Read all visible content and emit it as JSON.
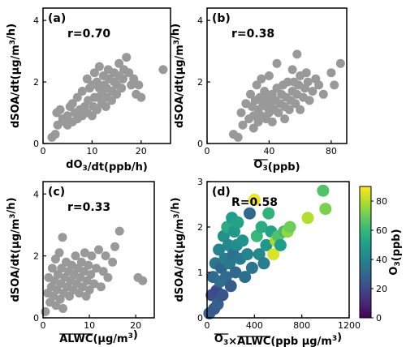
{
  "chart_data": [
    {
      "type": "scatter",
      "panel": "(a)",
      "annotation": "r=0.70",
      "xlabel": "dO3/dt(ppb/h)",
      "ylabel": "dSOA/dt(μg/m3/h)",
      "xlim": [
        0,
        26
      ],
      "ylim": [
        0,
        4.4
      ],
      "xticks": [
        0,
        10,
        20
      ],
      "yticks": [
        0,
        2,
        4
      ],
      "marker_color": "#999999",
      "points": [
        [
          1.8,
          0.2
        ],
        [
          2.5,
          0.3
        ],
        [
          3,
          0.6
        ],
        [
          2.8,
          1.0
        ],
        [
          3.5,
          1.1
        ],
        [
          4,
          0.8
        ],
        [
          4.5,
          0.7
        ],
        [
          5,
          0.9
        ],
        [
          5.5,
          1.2
        ],
        [
          5,
          0.6
        ],
        [
          6,
          0.7
        ],
        [
          6.5,
          1.0
        ],
        [
          6,
          1.3
        ],
        [
          7,
          0.8
        ],
        [
          7.5,
          1.1
        ],
        [
          7,
          1.5
        ],
        [
          8,
          0.9
        ],
        [
          8.5,
          1.2
        ],
        [
          8,
          1.7
        ],
        [
          9,
          1.0
        ],
        [
          9.2,
          1.4
        ],
        [
          9.5,
          1.8
        ],
        [
          9,
          2.1
        ],
        [
          10,
          0.9
        ],
        [
          10.3,
          1.2
        ],
        [
          10.5,
          1.5
        ],
        [
          10,
          1.9
        ],
        [
          10.5,
          2.3
        ],
        [
          11,
          1.1
        ],
        [
          11.2,
          1.5
        ],
        [
          11.5,
          1.8
        ],
        [
          11,
          2.0
        ],
        [
          11.5,
          2.5
        ],
        [
          12,
          1.3
        ],
        [
          12,
          1.6
        ],
        [
          12.5,
          1.9
        ],
        [
          12.3,
          2.2
        ],
        [
          12.8,
          1.2
        ],
        [
          13,
          1.5
        ],
        [
          13,
          1.8
        ],
        [
          13.5,
          2.1
        ],
        [
          13.3,
          2.4
        ],
        [
          14,
          1.4
        ],
        [
          14,
          1.7
        ],
        [
          14.5,
          2.0
        ],
        [
          14.5,
          2.3
        ],
        [
          15,
          1.6
        ],
        [
          15,
          1.9
        ],
        [
          15.5,
          2.2
        ],
        [
          15.5,
          2.6
        ],
        [
          16,
          1.8
        ],
        [
          16.3,
          2.1
        ],
        [
          16.5,
          2.4
        ],
        [
          17,
          2.8
        ],
        [
          17.5,
          2.3
        ],
        [
          18,
          1.9
        ],
        [
          18.5,
          2.1
        ],
        [
          19,
          1.6
        ],
        [
          19.5,
          1.9
        ],
        [
          20,
          1.5
        ],
        [
          24.5,
          2.4
        ]
      ]
    },
    {
      "type": "scatter",
      "panel": "(b)",
      "annotation": "r=0.38",
      "xlabel": "O3(ppb)",
      "ylabel": "dSOA/dt(μg/m3/h)",
      "xlim": [
        0,
        90
      ],
      "ylim": [
        0,
        4.4
      ],
      "xticks": [
        0,
        40,
        80
      ],
      "yticks": [
        0,
        2,
        4
      ],
      "marker_color": "#999999",
      "points": [
        [
          17,
          0.3
        ],
        [
          20,
          0.2
        ],
        [
          22,
          1.0
        ],
        [
          23,
          0.6
        ],
        [
          25,
          1.3
        ],
        [
          27,
          0.8
        ],
        [
          28,
          1.6
        ],
        [
          29,
          1.2
        ],
        [
          30,
          0.5
        ],
        [
          30,
          0.9
        ],
        [
          31,
          1.4
        ],
        [
          32,
          1.9
        ],
        [
          33,
          0.7
        ],
        [
          33,
          1.1
        ],
        [
          34,
          1.5
        ],
        [
          35,
          2.1
        ],
        [
          35,
          0.9
        ],
        [
          36,
          1.3
        ],
        [
          37,
          1.7
        ],
        [
          38,
          0.8
        ],
        [
          38,
          1.2
        ],
        [
          39,
          1.5
        ],
        [
          40,
          1.0
        ],
        [
          40,
          2.2
        ],
        [
          41,
          1.3
        ],
        [
          42,
          1.6
        ],
        [
          42,
          0.7
        ],
        [
          43,
          1.1
        ],
        [
          44,
          1.4
        ],
        [
          45,
          1.8
        ],
        [
          45,
          2.6
        ],
        [
          46,
          1.0
        ],
        [
          47,
          1.3
        ],
        [
          48,
          1.6
        ],
        [
          49,
          1.9
        ],
        [
          50,
          0.8
        ],
        [
          50,
          1.2
        ],
        [
          51,
          1.5
        ],
        [
          52,
          2.0
        ],
        [
          53,
          1.1
        ],
        [
          54,
          1.4
        ],
        [
          55,
          1.7
        ],
        [
          55,
          2.4
        ],
        [
          56,
          2.0
        ],
        [
          57,
          1.3
        ],
        [
          58,
          1.6
        ],
        [
          58,
          2.9
        ],
        [
          59,
          1.9
        ],
        [
          60,
          1.1
        ],
        [
          60,
          2.2
        ],
        [
          62,
          1.5
        ],
        [
          63,
          1.8
        ],
        [
          64,
          2.3
        ],
        [
          65,
          2.0
        ],
        [
          66,
          1.4
        ],
        [
          68,
          1.7
        ],
        [
          70,
          2.1
        ],
        [
          72,
          1.9
        ],
        [
          75,
          1.6
        ],
        [
          80,
          2.3
        ],
        [
          82,
          1.9
        ],
        [
          86,
          2.6
        ]
      ]
    },
    {
      "type": "scatter",
      "panel": "(c)",
      "annotation": "r=0.33",
      "xlabel": "ALWC(μg/m3)",
      "ylabel": "dSOA/dt(μg/m3/h)",
      "xlim": [
        0,
        24
      ],
      "ylim": [
        0,
        4.4
      ],
      "xticks": [
        0,
        10,
        20
      ],
      "yticks": [
        0,
        2,
        4
      ],
      "marker_color": "#999999",
      "points": [
        [
          0.5,
          0.2
        ],
        [
          1,
          0.8
        ],
        [
          1.2,
          1.3
        ],
        [
          1.5,
          0.5
        ],
        [
          1.8,
          1.0
        ],
        [
          2,
          1.6
        ],
        [
          2.2,
          0.7
        ],
        [
          2.5,
          1.2
        ],
        [
          2.7,
          1.9
        ],
        [
          2.8,
          0.4
        ],
        [
          3,
          0.9
        ],
        [
          3.2,
          1.4
        ],
        [
          3.5,
          2.1
        ],
        [
          3.7,
          0.6
        ],
        [
          3.8,
          1.1
        ],
        [
          4,
          1.6
        ],
        [
          4.2,
          2.6
        ],
        [
          4.3,
          0.3
        ],
        [
          4.5,
          0.8
        ],
        [
          4.7,
          1.3
        ],
        [
          5,
          1.8
        ],
        [
          5.2,
          1.0
        ],
        [
          5.5,
          1.5
        ],
        [
          5.7,
          0.7
        ],
        [
          6,
          1.2
        ],
        [
          6.2,
          1.7
        ],
        [
          6.5,
          0.9
        ],
        [
          6.7,
          1.4
        ],
        [
          7,
          2.0
        ],
        [
          7.2,
          1.1
        ],
        [
          7.5,
          1.6
        ],
        [
          7.8,
          0.8
        ],
        [
          8,
          1.3
        ],
        [
          8.3,
          1.8
        ],
        [
          8.5,
          1.0
        ],
        [
          8.8,
          1.5
        ],
        [
          9,
          2.1
        ],
        [
          9.3,
          0.7
        ],
        [
          9.5,
          1.2
        ],
        [
          9.8,
          1.7
        ],
        [
          10,
          0.9
        ],
        [
          10.3,
          1.4
        ],
        [
          10.5,
          2.0
        ],
        [
          11,
          1.1
        ],
        [
          11.5,
          1.6
        ],
        [
          12,
          2.2
        ],
        [
          12.5,
          1.0
        ],
        [
          13,
          1.5
        ],
        [
          13.5,
          2.0
        ],
        [
          14,
          1.3
        ],
        [
          15,
          1.8
        ],
        [
          15.5,
          2.3
        ],
        [
          16.5,
          2.8
        ],
        [
          20.5,
          1.3
        ],
        [
          21.5,
          1.2
        ]
      ]
    },
    {
      "type": "scatter",
      "panel": "(d)",
      "annotation": "R=0.58",
      "xlabel": "O3×ALWC(ppb μg/m3)",
      "ylabel": "dSOA/dt(μg/m3/h)",
      "colorbar_label": "O3(ppb)",
      "colorbar_range": [
        0,
        90
      ],
      "colorbar_ticks": [
        0,
        20,
        40,
        60,
        80
      ],
      "xlim": [
        0,
        1200
      ],
      "ylim": [
        0,
        3
      ],
      "xticks": [
        0,
        400,
        800,
        1200
      ],
      "yticks": [
        0,
        1,
        2,
        3
      ],
      "points": [
        [
          20,
          0.1,
          28
        ],
        [
          40,
          0.5,
          22
        ],
        [
          50,
          0.9,
          30
        ],
        [
          60,
          0.2,
          25
        ],
        [
          70,
          1.2,
          35
        ],
        [
          80,
          0.6,
          20
        ],
        [
          90,
          0.3,
          27
        ],
        [
          100,
          1.5,
          40
        ],
        [
          110,
          0.8,
          33
        ],
        [
          120,
          1.1,
          29
        ],
        [
          130,
          0.5,
          24
        ],
        [
          140,
          1.8,
          45
        ],
        [
          150,
          1.3,
          38
        ],
        [
          160,
          0.9,
          31
        ],
        [
          170,
          2.0,
          55
        ],
        [
          180,
          1.6,
          42
        ],
        [
          190,
          1.2,
          36
        ],
        [
          200,
          0.7,
          26
        ],
        [
          210,
          2.2,
          50
        ],
        [
          220,
          1.4,
          34
        ],
        [
          230,
          1.9,
          48
        ],
        [
          240,
          1.0,
          30
        ],
        [
          250,
          1.6,
          44
        ],
        [
          260,
          2.1,
          52
        ],
        [
          280,
          1.3,
          37
        ],
        [
          300,
          1.7,
          46
        ],
        [
          320,
          0.9,
          32
        ],
        [
          340,
          1.4,
          41
        ],
        [
          360,
          2.3,
          30
        ],
        [
          380,
          1.1,
          35
        ],
        [
          400,
          2.6,
          88
        ],
        [
          420,
          1.8,
          60
        ],
        [
          440,
          1.4,
          42
        ],
        [
          460,
          2.0,
          55
        ],
        [
          480,
          1.2,
          38
        ],
        [
          500,
          1.6,
          47
        ],
        [
          520,
          2.3,
          58
        ],
        [
          540,
          1.9,
          52
        ],
        [
          560,
          1.4,
          85
        ],
        [
          580,
          1.7,
          78
        ],
        [
          600,
          1.8,
          65
        ],
        [
          620,
          1.6,
          50
        ],
        [
          650,
          1.9,
          62
        ],
        [
          680,
          1.9,
          75
        ],
        [
          700,
          2.0,
          70
        ],
        [
          850,
          2.2,
          80
        ],
        [
          980,
          2.8,
          65
        ],
        [
          1000,
          2.4,
          72
        ]
      ]
    }
  ]
}
